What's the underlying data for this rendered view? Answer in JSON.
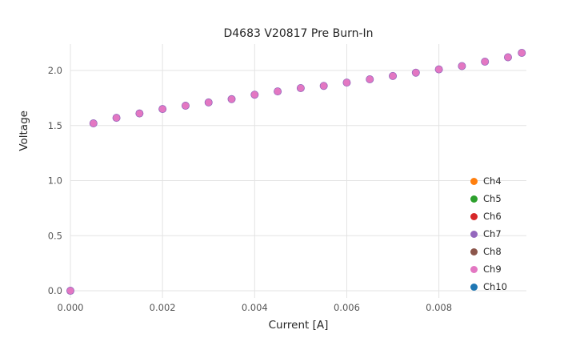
{
  "chart_data": {
    "type": "scatter",
    "title": "D4683 V20817 Pre Burn-In",
    "xlabel": "Current [A]",
    "ylabel": "Voltage",
    "xlim": [
      0.0,
      0.0099
    ],
    "ylim": [
      -0.065,
      2.24
    ],
    "grid": true,
    "grid_color": "#e3e3e3",
    "tick_label_color": "#555555",
    "legend_position": "lower right",
    "x_tick_values": [
      0.0,
      0.002,
      0.004,
      0.006,
      0.008
    ],
    "x_tick_labels": [
      "0.000",
      "0.002",
      "0.004",
      "0.006",
      "0.008"
    ],
    "y_tick_values": [
      0.0,
      0.5,
      1.0,
      1.5,
      2.0
    ],
    "y_tick_labels": [
      "0.0",
      "0.5",
      "1.0",
      "1.5",
      "2.0"
    ],
    "x": [
      0.0,
      0.0005,
      0.001,
      0.0015,
      0.002,
      0.0025,
      0.003,
      0.0035,
      0.004,
      0.0045,
      0.005,
      0.0055,
      0.006,
      0.0065,
      0.007,
      0.0075,
      0.008,
      0.0085,
      0.009,
      0.0095,
      0.0098
    ],
    "series": [
      {
        "name": "Ch4",
        "color": "#ff7f0e",
        "z": 1,
        "radius": 4.5,
        "values": [
          0.0,
          1.52,
          1.57,
          1.61,
          1.65,
          1.68,
          1.71,
          1.74,
          1.78,
          1.81,
          1.84,
          1.86,
          1.89,
          1.92,
          1.95,
          1.98,
          2.01,
          2.04,
          2.08,
          2.12,
          2.16
        ]
      },
      {
        "name": "Ch5",
        "color": "#2ca02c",
        "z": 2,
        "radius": 4.5,
        "values": [
          0.0,
          1.52,
          1.57,
          1.61,
          1.65,
          1.68,
          1.71,
          1.74,
          1.78,
          1.81,
          1.84,
          1.86,
          1.89,
          1.92,
          1.95,
          1.98,
          2.01,
          2.04,
          2.08,
          2.12,
          2.16
        ]
      },
      {
        "name": "Ch6",
        "color": "#d62728",
        "z": 3,
        "radius": 4.5,
        "values": [
          0.0,
          1.52,
          1.57,
          1.61,
          1.65,
          1.68,
          1.71,
          1.74,
          1.78,
          1.81,
          1.84,
          1.86,
          1.89,
          1.92,
          1.95,
          1.98,
          2.01,
          2.04,
          2.08,
          2.12,
          2.16
        ]
      },
      {
        "name": "Ch7",
        "color": "#9467bd",
        "z": 6,
        "radius": 5.0,
        "values": [
          0.0,
          1.52,
          1.57,
          1.61,
          1.65,
          1.68,
          1.71,
          1.74,
          1.78,
          1.81,
          1.84,
          1.86,
          1.89,
          1.92,
          1.95,
          1.98,
          2.01,
          2.04,
          2.08,
          2.12,
          2.16
        ]
      },
      {
        "name": "Ch8",
        "color": "#8c564b",
        "z": 4,
        "radius": 4.5,
        "values": [
          0.0,
          1.52,
          1.57,
          1.61,
          1.65,
          1.68,
          1.71,
          1.74,
          1.78,
          1.81,
          1.84,
          1.86,
          1.89,
          1.92,
          1.95,
          1.98,
          2.01,
          2.04,
          2.08,
          2.12,
          2.16
        ]
      },
      {
        "name": "Ch9",
        "color": "#e377c2",
        "z": 7,
        "radius": 4.2,
        "values": [
          0.0,
          1.52,
          1.57,
          1.61,
          1.65,
          1.68,
          1.71,
          1.74,
          1.78,
          1.81,
          1.84,
          1.86,
          1.89,
          1.92,
          1.95,
          1.98,
          2.01,
          2.04,
          2.08,
          2.12,
          2.16
        ]
      },
      {
        "name": "Ch10",
        "color": "#1f77b4",
        "z": 5,
        "radius": 4.5,
        "values": [
          0.0,
          1.52,
          1.57,
          1.61,
          1.65,
          1.68,
          1.71,
          1.74,
          1.78,
          1.81,
          1.84,
          1.86,
          1.89,
          1.92,
          1.95,
          1.98,
          2.01,
          2.04,
          2.08,
          2.12,
          2.16
        ]
      }
    ]
  }
}
